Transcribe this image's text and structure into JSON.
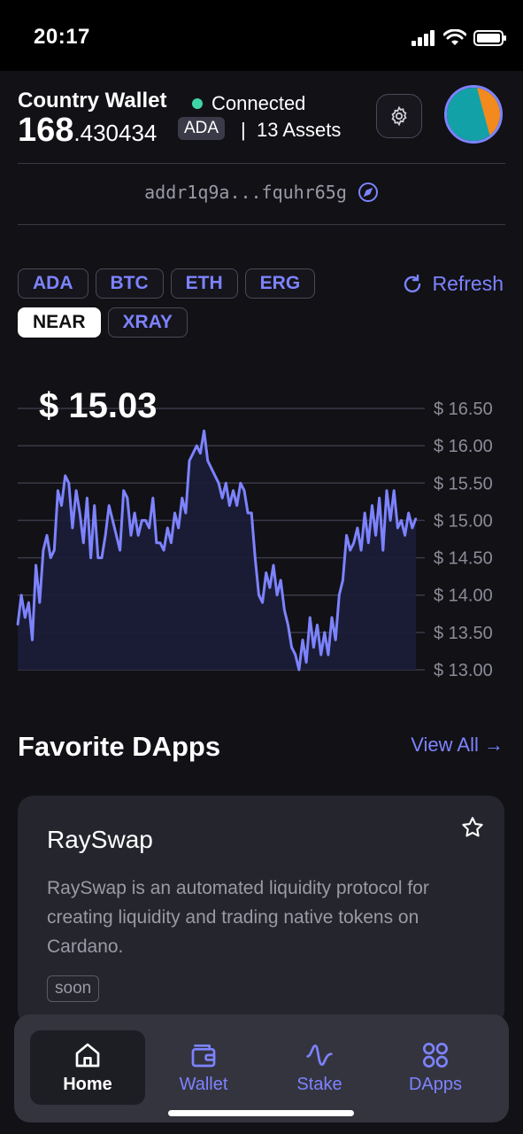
{
  "status": {
    "time": "20:17"
  },
  "wallet": {
    "name": "Country Wallet",
    "status": "Connected",
    "balance_int": "168",
    "balance_dec": ".430434",
    "currency": "ADA",
    "assets": "13 Assets",
    "address": "addr1q9a...fquhr65g"
  },
  "colors": {
    "accent": "#7d83ff",
    "connected": "#3ed6a6",
    "background": "#111116"
  },
  "tokens": [
    {
      "label": "ADA",
      "active": false
    },
    {
      "label": "BTC",
      "active": false
    },
    {
      "label": "ETH",
      "active": false
    },
    {
      "label": "ERG",
      "active": false
    },
    {
      "label": "NEAR",
      "active": true
    },
    {
      "label": "XRAY",
      "active": false
    }
  ],
  "refresh_label": "Refresh",
  "price_label": "$ 15.03",
  "chart_data": {
    "type": "area",
    "title": "",
    "xlabel": "",
    "ylabel": "",
    "ylim": [
      13.0,
      16.5
    ],
    "yticks": [
      "$ 13.00",
      "$ 13.50",
      "$ 14.00",
      "$ 14.50",
      "$ 15.00",
      "$ 15.50",
      "$ 16.00",
      "$ 16.50"
    ],
    "grid": true,
    "values": [
      13.6,
      14.0,
      13.7,
      13.9,
      13.4,
      14.4,
      13.9,
      14.6,
      14.8,
      14.5,
      14.6,
      15.4,
      15.2,
      15.6,
      15.5,
      14.9,
      15.4,
      15.1,
      14.7,
      15.3,
      14.5,
      15.2,
      14.5,
      14.5,
      14.8,
      15.2,
      15.0,
      14.8,
      14.6,
      15.4,
      15.3,
      14.8,
      15.1,
      14.8,
      15.0,
      15.0,
      14.9,
      15.3,
      14.7,
      14.7,
      14.6,
      14.9,
      14.7,
      15.1,
      14.9,
      15.3,
      15.1,
      15.8,
      15.9,
      16.0,
      15.9,
      16.2,
      15.8,
      15.7,
      15.6,
      15.5,
      15.3,
      15.5,
      15.2,
      15.4,
      15.2,
      15.5,
      15.4,
      15.1,
      15.1,
      14.5,
      14.0,
      13.9,
      14.3,
      14.1,
      14.4,
      14.0,
      14.2,
      13.8,
      13.6,
      13.3,
      13.2,
      13.0,
      13.4,
      13.1,
      13.7,
      13.3,
      13.6,
      13.2,
      13.5,
      13.2,
      13.7,
      13.4,
      14.0,
      14.2,
      14.8,
      14.6,
      14.7,
      14.9,
      14.6,
      15.1,
      14.7,
      15.2,
      14.8,
      15.3,
      14.6,
      15.4,
      15.0,
      15.4,
      14.9,
      15.0,
      14.8,
      15.1,
      14.9,
      15.03
    ]
  },
  "favorites": {
    "title": "Favorite DApps",
    "view_all": "View All →",
    "card": {
      "name": "RaySwap",
      "description": "RaySwap is an automated liquidity protocol for creating liquidity and trading native tokens on Cardano.",
      "badge": "soon"
    }
  },
  "nav": [
    {
      "label": "Home",
      "icon": "home-icon",
      "active": true
    },
    {
      "label": "Wallet",
      "icon": "wallet-icon",
      "active": false
    },
    {
      "label": "Stake",
      "icon": "activity-icon",
      "active": false
    },
    {
      "label": "DApps",
      "icon": "grid-icon",
      "active": false
    }
  ]
}
